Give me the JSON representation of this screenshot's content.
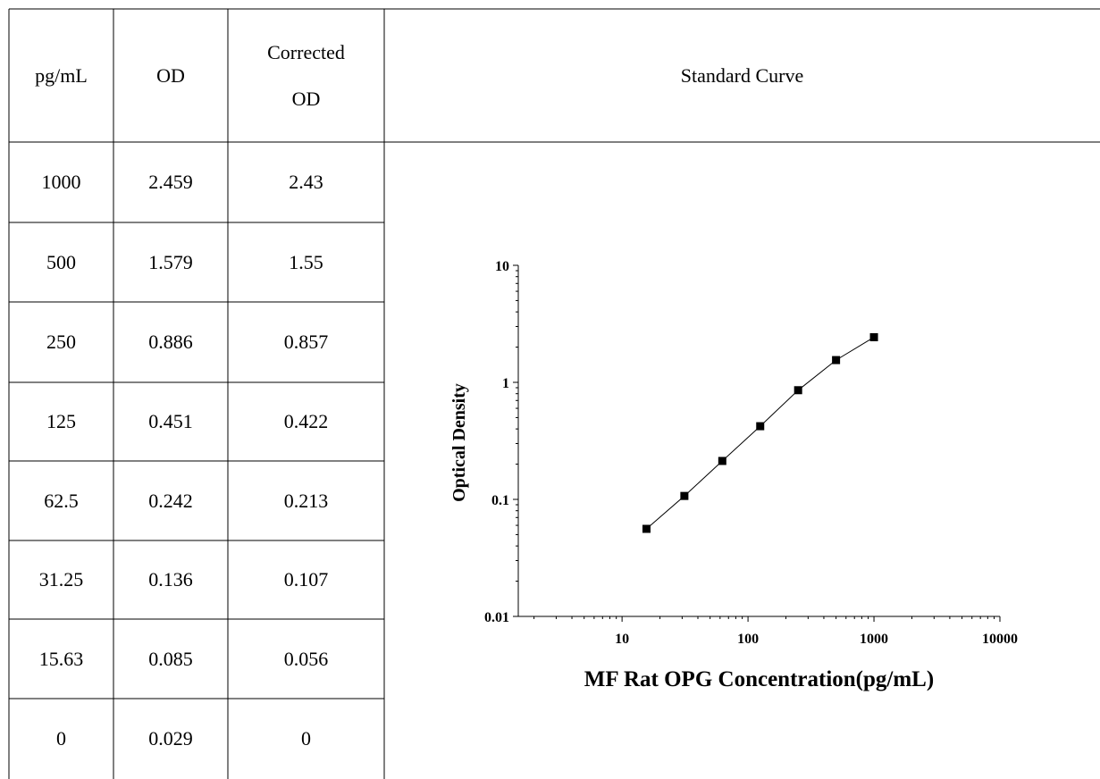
{
  "table": {
    "headers": [
      "pg/mL",
      "OD",
      "Corrected\nOD",
      "Standard Curve"
    ],
    "rows": [
      [
        "1000",
        "2.459",
        "2.43"
      ],
      [
        "500",
        "1.579",
        "1.55"
      ],
      [
        "250",
        "0.886",
        "0.857"
      ],
      [
        "125",
        "0.451",
        "0.422"
      ],
      [
        "62.5",
        "0.242",
        "0.213"
      ],
      [
        "31.25",
        "0.136",
        "0.107"
      ],
      [
        "15.63",
        "0.085",
        "0.056"
      ],
      [
        "0",
        "0.029",
        "0"
      ]
    ]
  },
  "chart_data": {
    "type": "scatter",
    "xlabel": "MF Rat OPG Concentration(pg/mL)",
    "ylabel": "Optical Density",
    "xscale": "log",
    "yscale": "log",
    "xlim": [
      1.5,
      10000
    ],
    "ylim": [
      0.01,
      10
    ],
    "x_ticks": [
      "10",
      "100",
      "1000",
      "10000"
    ],
    "y_ticks": [
      "0.01",
      "0.1",
      "1",
      "10"
    ],
    "x": [
      15.63,
      31.25,
      62.5,
      125,
      250,
      500,
      1000
    ],
    "y": [
      0.056,
      0.107,
      0.213,
      0.422,
      0.857,
      1.55,
      2.43
    ],
    "fit_line": true,
    "grid": false,
    "marker": "square",
    "color": "#000000"
  }
}
